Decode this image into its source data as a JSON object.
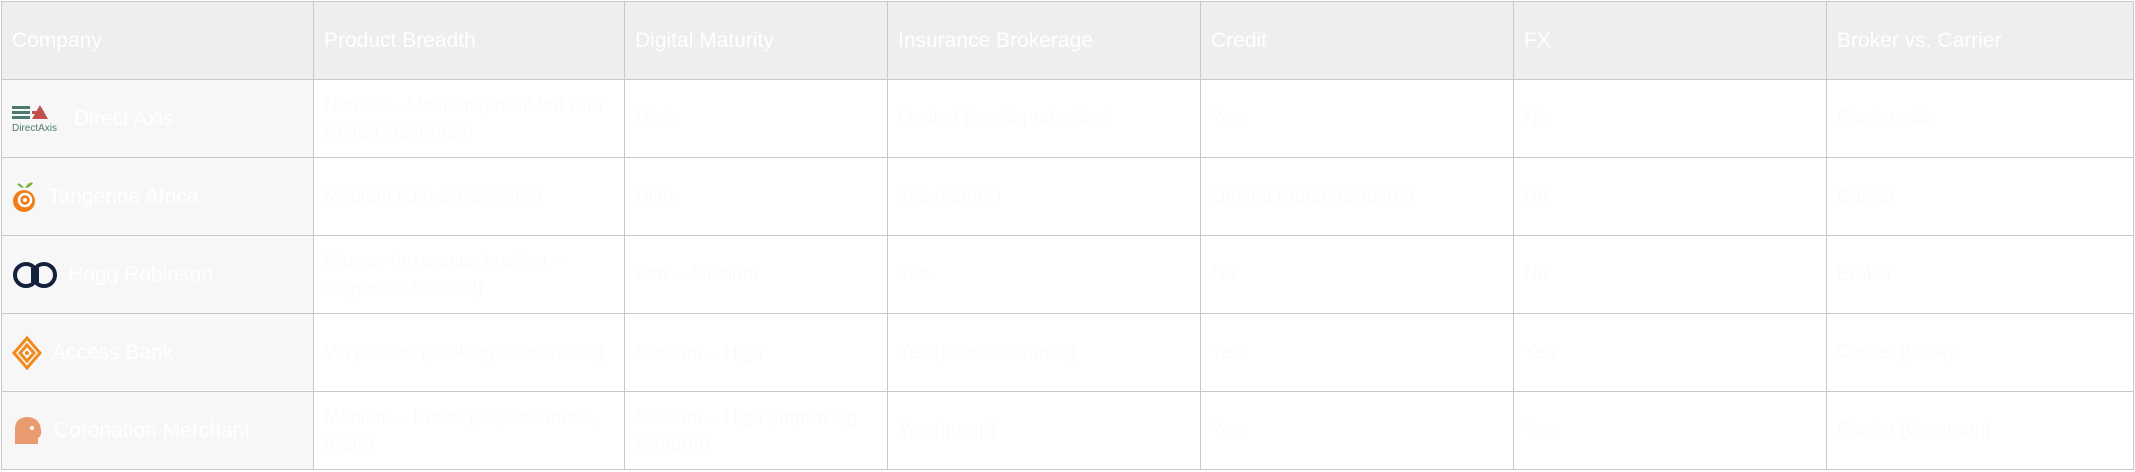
{
  "table": {
    "headers": [
      "Company",
      "Product Breadth",
      "Digital Maturity",
      "Insurance Brokerage",
      "Credit",
      "FX",
      "Broker vs. Carrier"
    ],
    "rows": [
      {
        "company": "Direct Axis",
        "logo": "directaxis-logo",
        "logo_text": "DirectAxis",
        "cells": [
          "Narrow – Medium (credit-led with limited insurance)",
          "High",
          "Limited (credit protection)",
          "Yes",
          "No",
          "Carrier-side"
        ]
      },
      {
        "company": "Tangerine Africa",
        "logo": "tangerine-logo",
        "cells": [
          "Medium (Life & Pensions)",
          "High",
          "Yes (carrier)",
          "Limited (personal loans)",
          "No",
          "Carrier"
        ]
      },
      {
        "company": "Hogg Robinson",
        "logo": "hogg-robinson-logo",
        "cells": [
          "Narrow (insurance broking – corporate-focused)",
          "Low – Medium",
          "Yes",
          "No",
          "No",
          "Broker"
        ]
      },
      {
        "company": "Access Bank",
        "logo": "access-bank-logo",
        "cells": [
          "Very broad (banking + insurance)",
          "Medium – High",
          "Yes (bancassurance)",
          "Yes",
          "Yes",
          "Carrier (bank)"
        ]
      },
      {
        "company": "Coronation Merchant",
        "logo": "coronation-logo",
        "cells": [
          "Medium – Broad (FX, insurance, trade)",
          "Medium – High (improving platform)",
          "Yes (group)",
          "Yes",
          "Yes",
          "Carrier (via group)"
        ]
      }
    ]
  },
  "colors": {
    "header_bg": "#eeeeee",
    "company_bg": "#f7f7f7",
    "border": "#c8c8c8",
    "tangerine": "#f07d1a",
    "access": "#f08a1e",
    "hogg": "#14213d",
    "coronation": "#e99a6f",
    "directaxis_red": "#c0504d",
    "directaxis_green": "#4d7a6f"
  }
}
